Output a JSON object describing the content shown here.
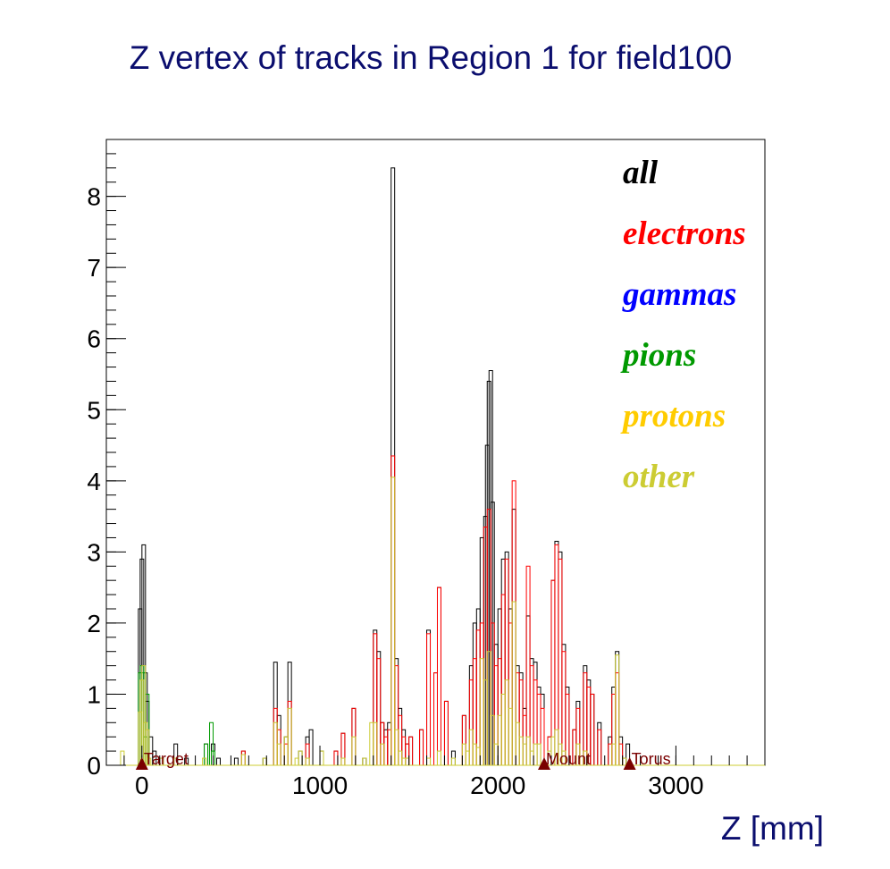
{
  "chart_data": {
    "type": "histogram",
    "title": "Z vertex of tracks in Region 1 for field100",
    "xlabel": "Z [mm]",
    "ylabel": "",
    "xlim": [
      -200,
      3500
    ],
    "ylim": [
      0,
      8.8
    ],
    "bin_width": 20,
    "x_ticks": [
      0,
      1000,
      2000,
      3000
    ],
    "y_ticks": [
      0,
      1,
      2,
      3,
      4,
      5,
      6,
      7,
      8
    ],
    "grid": false,
    "legend_position": "top-right",
    "markers": [
      {
        "label": "Target",
        "z": 0
      },
      {
        "label": "Mount",
        "z": 2260
      },
      {
        "label": "Torus",
        "z": 2740
      }
    ],
    "series": [
      {
        "name": "all",
        "color": "#000000",
        "bins": [
          [
            -20,
            2.2
          ],
          [
            -10,
            2.9
          ],
          [
            0,
            3.1
          ],
          [
            10,
            1.3
          ],
          [
            20,
            0.9
          ],
          [
            40,
            0.4
          ],
          [
            60,
            0.2
          ],
          [
            100,
            0.1
          ],
          [
            180,
            0.3
          ],
          [
            240,
            0.1
          ],
          [
            350,
            0.3
          ],
          [
            390,
            0.3
          ],
          [
            420,
            0.1
          ],
          [
            520,
            0.1
          ],
          [
            560,
            0.2
          ],
          [
            680,
            0.1
          ],
          [
            740,
            1.45
          ],
          [
            760,
            0.7
          ],
          [
            800,
            0.4
          ],
          [
            820,
            1.45
          ],
          [
            880,
            0.2
          ],
          [
            920,
            0.4
          ],
          [
            940,
            0.5
          ],
          [
            1000,
            0.2
          ],
          [
            1080,
            0.2
          ],
          [
            1120,
            0.45
          ],
          [
            1180,
            0.8
          ],
          [
            1240,
            0.1
          ],
          [
            1300,
            1.9
          ],
          [
            1320,
            1.6
          ],
          [
            1340,
            0.6
          ],
          [
            1360,
            0.5
          ],
          [
            1380,
            0.6
          ],
          [
            1400,
            8.4
          ],
          [
            1420,
            1.5
          ],
          [
            1440,
            0.8
          ],
          [
            1460,
            0.5
          ],
          [
            1480,
            0.3
          ],
          [
            1500,
            0.4
          ],
          [
            1560,
            0.5
          ],
          [
            1600,
            1.9
          ],
          [
            1640,
            1.3
          ],
          [
            1660,
            2.5
          ],
          [
            1700,
            0.9
          ],
          [
            1740,
            0.2
          ],
          [
            1800,
            0.7
          ],
          [
            1840,
            1.4
          ],
          [
            1860,
            2.0
          ],
          [
            1880,
            2.2
          ],
          [
            1900,
            3.2
          ],
          [
            1920,
            3.5
          ],
          [
            1930,
            4.5
          ],
          [
            1940,
            5.4
          ],
          [
            1950,
            5.55
          ],
          [
            1960,
            3.7
          ],
          [
            1980,
            1.7
          ],
          [
            2000,
            2.2
          ],
          [
            2020,
            2.9
          ],
          [
            2040,
            3.0
          ],
          [
            2060,
            2.2
          ],
          [
            2080,
            3.6
          ],
          [
            2100,
            1.4
          ],
          [
            2120,
            1.3
          ],
          [
            2140,
            0.8
          ],
          [
            2160,
            2.1
          ],
          [
            2180,
            1.5
          ],
          [
            2200,
            1.45
          ],
          [
            2220,
            1.1
          ],
          [
            2240,
            1.0
          ],
          [
            2280,
            0.4
          ],
          [
            2300,
            2.6
          ],
          [
            2320,
            3.15
          ],
          [
            2340,
            3.0
          ],
          [
            2360,
            1.7
          ],
          [
            2380,
            1.1
          ],
          [
            2420,
            0.5
          ],
          [
            2440,
            0.9
          ],
          [
            2480,
            1.4
          ],
          [
            2500,
            1.2
          ],
          [
            2520,
            1.0
          ],
          [
            2560,
            0.6
          ],
          [
            2620,
            0.4
          ],
          [
            2640,
            1.1
          ],
          [
            2660,
            1.6
          ],
          [
            2680,
            0.4
          ],
          [
            2700,
            0.1
          ],
          [
            2720,
            0.3
          ]
        ]
      },
      {
        "name": "electrons",
        "color": "#ff0000",
        "bins": [
          [
            560,
            0.2
          ],
          [
            740,
            0.8
          ],
          [
            760,
            0.5
          ],
          [
            800,
            0.3
          ],
          [
            820,
            0.9
          ],
          [
            920,
            0.3
          ],
          [
            1080,
            0.2
          ],
          [
            1120,
            0.45
          ],
          [
            1180,
            0.8
          ],
          [
            1300,
            1.85
          ],
          [
            1320,
            1.5
          ],
          [
            1340,
            0.6
          ],
          [
            1360,
            0.4
          ],
          [
            1380,
            0.5
          ],
          [
            1400,
            4.35
          ],
          [
            1420,
            1.4
          ],
          [
            1440,
            0.7
          ],
          [
            1460,
            0.4
          ],
          [
            1480,
            0.3
          ],
          [
            1500,
            0.4
          ],
          [
            1560,
            0.5
          ],
          [
            1600,
            1.85
          ],
          [
            1640,
            1.3
          ],
          [
            1660,
            2.5
          ],
          [
            1700,
            0.9
          ],
          [
            1800,
            0.7
          ],
          [
            1840,
            1.2
          ],
          [
            1860,
            1.5
          ],
          [
            1880,
            1.9
          ],
          [
            1900,
            2.0
          ],
          [
            1920,
            3.35
          ],
          [
            1940,
            3.6
          ],
          [
            1960,
            2.0
          ],
          [
            1980,
            1.4
          ],
          [
            2000,
            1.5
          ],
          [
            2020,
            2.4
          ],
          [
            2040,
            2.9
          ],
          [
            2060,
            2.0
          ],
          [
            2080,
            4.0
          ],
          [
            2100,
            1.3
          ],
          [
            2120,
            1.2
          ],
          [
            2140,
            0.7
          ],
          [
            2160,
            2.8
          ],
          [
            2180,
            1.4
          ],
          [
            2200,
            1.2
          ],
          [
            2220,
            1.0
          ],
          [
            2240,
            0.8
          ],
          [
            2280,
            0.4
          ],
          [
            2300,
            2.6
          ],
          [
            2320,
            3.1
          ],
          [
            2340,
            2.9
          ],
          [
            2360,
            1.6
          ],
          [
            2380,
            1.0
          ],
          [
            2420,
            0.5
          ],
          [
            2440,
            0.8
          ],
          [
            2480,
            1.3
          ],
          [
            2500,
            1.1
          ],
          [
            2520,
            1.0
          ],
          [
            2560,
            0.5
          ],
          [
            2620,
            0.3
          ],
          [
            2640,
            1.0
          ],
          [
            2660,
            1.3
          ],
          [
            2680,
            0.3
          ]
        ]
      },
      {
        "name": "gammas",
        "color": "#0000ff",
        "bins": []
      },
      {
        "name": "pions",
        "color": "#009900",
        "bins": [
          [
            -20,
            1.3
          ],
          [
            -10,
            1.4
          ],
          [
            0,
            1.3
          ],
          [
            10,
            0.4
          ],
          [
            20,
            1.0
          ],
          [
            350,
            0.3
          ],
          [
            380,
            0.6
          ],
          [
            390,
            0.2
          ]
        ]
      },
      {
        "name": "protons",
        "color": "#ffcc00",
        "bins": []
      },
      {
        "name": "other",
        "color": "#cccc33",
        "bins": [
          [
            -120,
            0.2
          ],
          [
            -20,
            0.75
          ],
          [
            -10,
            1.2
          ],
          [
            0,
            1.4
          ],
          [
            10,
            0.6
          ],
          [
            20,
            0.5
          ],
          [
            30,
            0.1
          ],
          [
            100,
            0.1
          ],
          [
            180,
            0.1
          ],
          [
            340,
            0.1
          ],
          [
            560,
            0.15
          ],
          [
            680,
            0.1
          ],
          [
            740,
            0.6
          ],
          [
            760,
            0.3
          ],
          [
            800,
            0.4
          ],
          [
            820,
            0.8
          ],
          [
            860,
            0.1
          ],
          [
            880,
            0.2
          ],
          [
            920,
            0.1
          ],
          [
            1000,
            0.2
          ],
          [
            1120,
            0.1
          ],
          [
            1180,
            0.4
          ],
          [
            1240,
            0.1
          ],
          [
            1280,
            0.6
          ],
          [
            1300,
            0.6
          ],
          [
            1340,
            0.3
          ],
          [
            1400,
            4.05
          ],
          [
            1420,
            0.5
          ],
          [
            1440,
            0.2
          ],
          [
            1460,
            0.1
          ],
          [
            1480,
            0.1
          ],
          [
            1600,
            0.1
          ],
          [
            1660,
            0.2
          ],
          [
            1740,
            0.1
          ],
          [
            1800,
            0.3
          ],
          [
            1820,
            0.2
          ],
          [
            1840,
            0.5
          ],
          [
            1860,
            0.3
          ],
          [
            1880,
            0.25
          ],
          [
            1900,
            1.5
          ],
          [
            1920,
            1.2
          ],
          [
            1940,
            1.6
          ],
          [
            1960,
            0.7
          ],
          [
            1980,
            0.3
          ],
          [
            2000,
            0.7
          ],
          [
            2020,
            1.0
          ],
          [
            2040,
            1.2
          ],
          [
            2060,
            0.8
          ],
          [
            2080,
            2.3
          ],
          [
            2100,
            0.6
          ],
          [
            2120,
            0.4
          ],
          [
            2140,
            0.3
          ],
          [
            2160,
            0.4
          ],
          [
            2180,
            0.2
          ],
          [
            2200,
            0.3
          ],
          [
            2220,
            0.3
          ],
          [
            2280,
            0.2
          ],
          [
            2300,
            0.4
          ],
          [
            2320,
            0.5
          ],
          [
            2340,
            0.3
          ],
          [
            2360,
            0.2
          ],
          [
            2440,
            0.3
          ],
          [
            2480,
            0.2
          ],
          [
            2640,
            0.3
          ],
          [
            2660,
            1.55
          ],
          [
            2700,
            0.1
          ]
        ]
      }
    ]
  }
}
